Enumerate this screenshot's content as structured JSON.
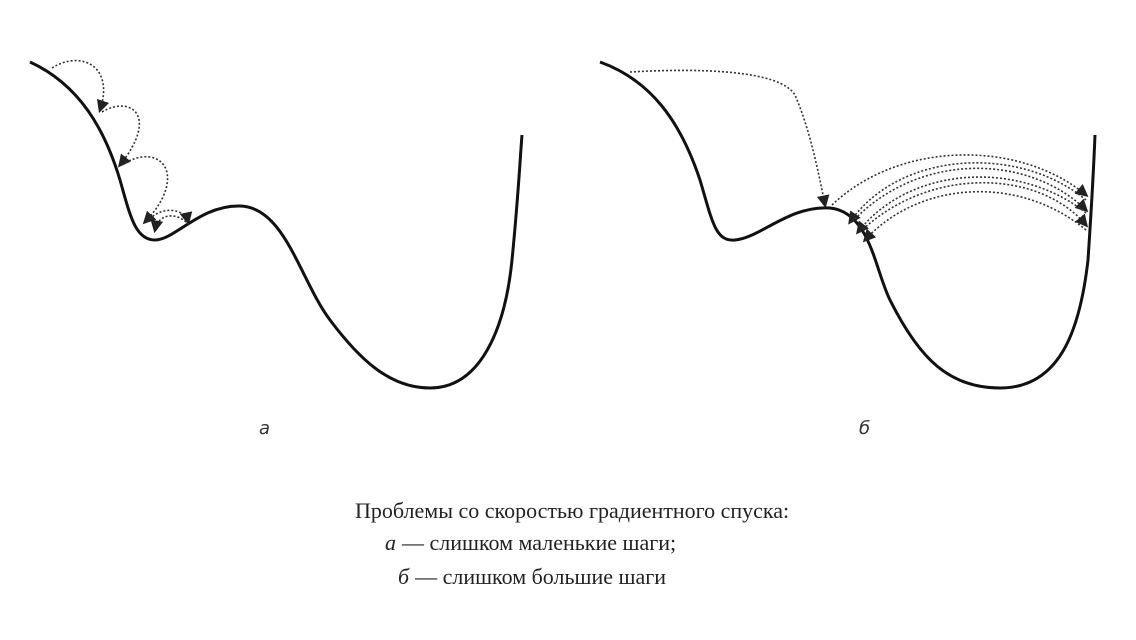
{
  "panels": [
    {
      "label": "а"
    },
    {
      "label": "б"
    }
  ],
  "caption": {
    "title": "Проблемы со скоростью градиентного спуска:",
    "lines": [
      {
        "marker": "а",
        "text": "— слишком маленькие шаги;"
      },
      {
        "marker": "б",
        "text": "— слишком большие шаги"
      }
    ]
  }
}
